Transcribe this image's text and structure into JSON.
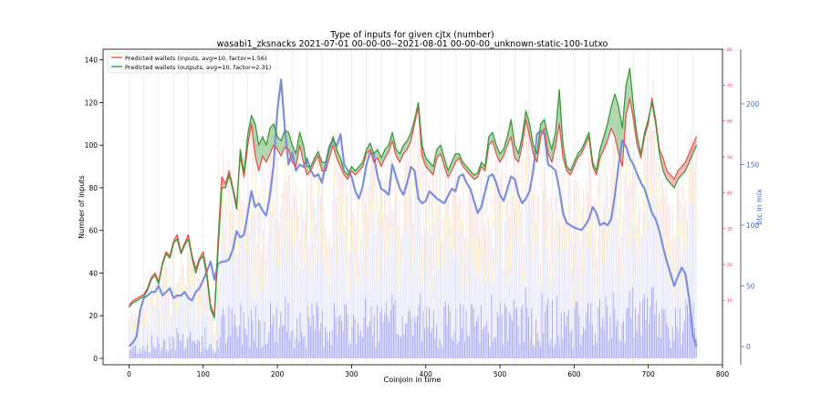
{
  "chart_data": {
    "type": "line",
    "title": "Type of inputs for given cjtx (number)",
    "subtitle": "wasabi1_zksnacks 2021-07-01 00-00-00--2021-08-01 00-00-00_unknown-static-100-1utxo",
    "xlabel": "Coinjoin in time",
    "ylabel": "Number of inputs",
    "y2label": "btc in mix",
    "xlim": [
      -35,
      800
    ],
    "ylim": [
      -3,
      145
    ],
    "y2lim": [
      -15,
      245
    ],
    "y3lim": [
      -8,
      80
    ],
    "xticks": [
      0,
      100,
      200,
      300,
      400,
      500,
      600,
      700,
      800
    ],
    "yticks": [
      0,
      20,
      40,
      60,
      80,
      100,
      120,
      140
    ],
    "y2ticks": [
      0,
      50,
      100,
      150,
      200
    ],
    "y3ticks": [
      10,
      20,
      30,
      40,
      50,
      60,
      70,
      80
    ],
    "grid": true,
    "legend_position": "top-left",
    "colors": {
      "inputs": "#e8554d",
      "outputs": "#3a9a3a",
      "outputs_fill": "#3a9a3a",
      "inputs_fill": "#e8554d",
      "btc": "#7b8fe0",
      "bars_blue": "#5b5bf0",
      "bars_red": "#f4a6a0",
      "bars_yellow": "#f5d98a",
      "bars_lavender": "#dcdcfa",
      "axis3": "#e03030"
    },
    "series": [
      {
        "name": "Predicted wallets (inputs, avg=10, factor=1.56)",
        "x": [
          0,
          5,
          10,
          15,
          20,
          25,
          30,
          35,
          40,
          45,
          50,
          55,
          60,
          65,
          70,
          75,
          80,
          85,
          90,
          95,
          100,
          105,
          110,
          115,
          120,
          125,
          130,
          135,
          140,
          145,
          150,
          155,
          160,
          165,
          170,
          175,
          180,
          185,
          190,
          195,
          200,
          205,
          210,
          215,
          220,
          225,
          230,
          235,
          240,
          245,
          250,
          255,
          260,
          265,
          270,
          275,
          280,
          285,
          290,
          295,
          300,
          305,
          310,
          315,
          320,
          325,
          330,
          335,
          340,
          345,
          350,
          355,
          360,
          365,
          370,
          375,
          380,
          385,
          390,
          395,
          400,
          405,
          410,
          415,
          420,
          425,
          430,
          435,
          440,
          445,
          450,
          455,
          460,
          465,
          470,
          475,
          480,
          485,
          490,
          495,
          500,
          505,
          510,
          515,
          520,
          525,
          530,
          535,
          540,
          545,
          550,
          555,
          560,
          565,
          570,
          575,
          580,
          585,
          590,
          595,
          600,
          605,
          610,
          615,
          620,
          625,
          630,
          635,
          640,
          645,
          650,
          655,
          660,
          665,
          670,
          675,
          680,
          685,
          690,
          695,
          700,
          705,
          710,
          715,
          720,
          725,
          730,
          735,
          740,
          745,
          750,
          755,
          760,
          765
        ],
        "values": [
          25,
          27,
          28,
          29,
          30,
          33,
          38,
          40,
          36,
          45,
          50,
          48,
          55,
          58,
          50,
          54,
          58,
          48,
          42,
          47,
          50,
          40,
          25,
          20,
          55,
          85,
          82,
          88,
          80,
          72,
          95,
          85,
          100,
          110,
          95,
          88,
          95,
          92,
          96,
          100,
          98,
          95,
          99,
          98,
          92,
          90,
          100,
          92,
          86,
          88,
          92,
          95,
          88,
          88,
          94,
          100,
          94,
          90,
          86,
          84,
          88,
          86,
          88,
          90,
          96,
          98,
          92,
          94,
          90,
          94,
          97,
          102,
          95,
          92,
          96,
          98,
          102,
          110,
          118,
          95,
          90,
          88,
          86,
          94,
          96,
          90,
          85,
          88,
          92,
          94,
          90,
          88,
          86,
          84,
          85,
          90,
          88,
          100,
          102,
          96,
          92,
          95,
          100,
          104,
          94,
          92,
          100,
          112,
          104,
          96,
          92,
          104,
          108,
          96,
          92,
          100,
          110,
          94,
          88,
          86,
          90,
          94,
          96,
          100,
          104,
          90,
          86,
          94,
          98,
          102,
          108,
          104,
          96,
          90,
          114,
          122,
          112,
          100,
          94,
          104,
          110,
          122,
          112,
          98,
          94,
          88,
          86,
          84,
          88,
          90,
          92,
          96,
          100,
          104
        ]
      },
      {
        "name": "Predicted wallets (outputs, avg=10, factor=2.31)",
        "x": [
          0,
          5,
          10,
          15,
          20,
          25,
          30,
          35,
          40,
          45,
          50,
          55,
          60,
          65,
          70,
          75,
          80,
          85,
          90,
          95,
          100,
          105,
          110,
          115,
          120,
          125,
          130,
          135,
          140,
          145,
          150,
          155,
          160,
          165,
          170,
          175,
          180,
          185,
          190,
          195,
          200,
          205,
          210,
          215,
          220,
          225,
          230,
          235,
          240,
          245,
          250,
          255,
          260,
          265,
          270,
          275,
          280,
          285,
          290,
          295,
          300,
          305,
          310,
          315,
          320,
          325,
          330,
          335,
          340,
          345,
          350,
          355,
          360,
          365,
          370,
          375,
          380,
          385,
          390,
          395,
          400,
          405,
          410,
          415,
          420,
          425,
          430,
          435,
          440,
          445,
          450,
          455,
          460,
          465,
          470,
          475,
          480,
          485,
          490,
          495,
          500,
          505,
          510,
          515,
          520,
          525,
          530,
          535,
          540,
          545,
          550,
          555,
          560,
          565,
          570,
          575,
          580,
          585,
          590,
          595,
          600,
          605,
          610,
          615,
          620,
          625,
          630,
          635,
          640,
          645,
          650,
          655,
          660,
          665,
          670,
          675,
          680,
          685,
          690,
          695,
          700,
          705,
          710,
          715,
          720,
          725,
          730,
          735,
          740,
          745,
          750,
          755,
          760,
          765
        ],
        "values": [
          24,
          26,
          27,
          28,
          29,
          32,
          37,
          39,
          35,
          44,
          49,
          47,
          54,
          56,
          49,
          53,
          56,
          47,
          40,
          46,
          48,
          38,
          23,
          19,
          50,
          80,
          80,
          86,
          79,
          70,
          98,
          87,
          105,
          114,
          110,
          100,
          104,
          100,
          108,
          110,
          104,
          102,
          107,
          106,
          100,
          96,
          106,
          100,
          90,
          90,
          94,
          97,
          92,
          92,
          98,
          104,
          98,
          94,
          88,
          86,
          90,
          88,
          90,
          92,
          98,
          101,
          96,
          98,
          94,
          98,
          100,
          106,
          98,
          96,
          100,
          102,
          106,
          112,
          120,
          100,
          94,
          92,
          90,
          98,
          100,
          94,
          88,
          92,
          96,
          96,
          92,
          90,
          88,
          86,
          87,
          92,
          90,
          104,
          106,
          100,
          96,
          98,
          104,
          112,
          100,
          96,
          104,
          116,
          110,
          100,
          96,
          110,
          112,
          104,
          98,
          106,
          126,
          100,
          90,
          88,
          92,
          96,
          98,
          102,
          106,
          92,
          88,
          98,
          104,
          110,
          118,
          124,
          118,
          108,
          128,
          136,
          118,
          104,
          96,
          106,
          112,
          120,
          110,
          96,
          88,
          84,
          82,
          80,
          84,
          86,
          88,
          92,
          96,
          100
        ]
      },
      {
        "name": "btc in mix",
        "axis": "right",
        "x": [
          0,
          5,
          10,
          15,
          20,
          25,
          30,
          35,
          40,
          45,
          50,
          55,
          60,
          65,
          70,
          75,
          80,
          85,
          90,
          95,
          100,
          105,
          110,
          115,
          120,
          125,
          130,
          135,
          140,
          145,
          150,
          155,
          160,
          165,
          170,
          175,
          180,
          185,
          190,
          195,
          200,
          205,
          210,
          215,
          220,
          225,
          230,
          235,
          240,
          245,
          250,
          255,
          260,
          265,
          270,
          275,
          280,
          285,
          290,
          295,
          300,
          305,
          310,
          315,
          320,
          325,
          330,
          335,
          340,
          345,
          350,
          355,
          360,
          365,
          370,
          375,
          380,
          385,
          390,
          395,
          400,
          405,
          410,
          415,
          420,
          425,
          430,
          435,
          440,
          445,
          450,
          455,
          460,
          465,
          470,
          475,
          480,
          485,
          490,
          495,
          500,
          505,
          510,
          515,
          520,
          525,
          530,
          535,
          540,
          545,
          550,
          555,
          560,
          565,
          570,
          575,
          580,
          585,
          590,
          595,
          600,
          605,
          610,
          615,
          620,
          625,
          630,
          635,
          640,
          645,
          650,
          655,
          660,
          665,
          670,
          675,
          680,
          685,
          690,
          695,
          700,
          705,
          710,
          715,
          720,
          725,
          730,
          735,
          740,
          745,
          750,
          755,
          760,
          765
        ],
        "values": [
          0,
          3,
          8,
          30,
          40,
          42,
          45,
          45,
          50,
          42,
          45,
          48,
          40,
          42,
          42,
          45,
          40,
          38,
          45,
          48,
          55,
          62,
          70,
          55,
          68,
          70,
          70,
          72,
          80,
          95,
          90,
          92,
          110,
          128,
          115,
          118,
          112,
          108,
          125,
          150,
          195,
          220,
          180,
          150,
          160,
          145,
          150,
          148,
          155,
          145,
          140,
          142,
          135,
          150,
          165,
          170,
          165,
          175,
          150,
          145,
          140,
          128,
          122,
          132,
          150,
          160,
          158,
          140,
          130,
          128,
          125,
          150,
          140,
          130,
          125,
          135,
          148,
          145,
          122,
          118,
          120,
          128,
          125,
          122,
          120,
          118,
          124,
          130,
          128,
          140,
          142,
          135,
          130,
          120,
          110,
          115,
          128,
          140,
          142,
          135,
          125,
          120,
          130,
          140,
          138,
          125,
          118,
          122,
          128,
          145,
          175,
          178,
          175,
          150,
          148,
          145,
          130,
          110,
          102,
          100,
          98,
          97,
          96,
          100,
          105,
          115,
          110,
          100,
          102,
          100,
          105,
          125,
          150,
          170,
          165,
          155,
          150,
          142,
          135,
          130,
          120,
          110,
          105,
          95,
          82,
          70,
          60,
          50,
          58,
          65,
          60,
          40,
          10,
          0
        ]
      }
    ]
  }
}
